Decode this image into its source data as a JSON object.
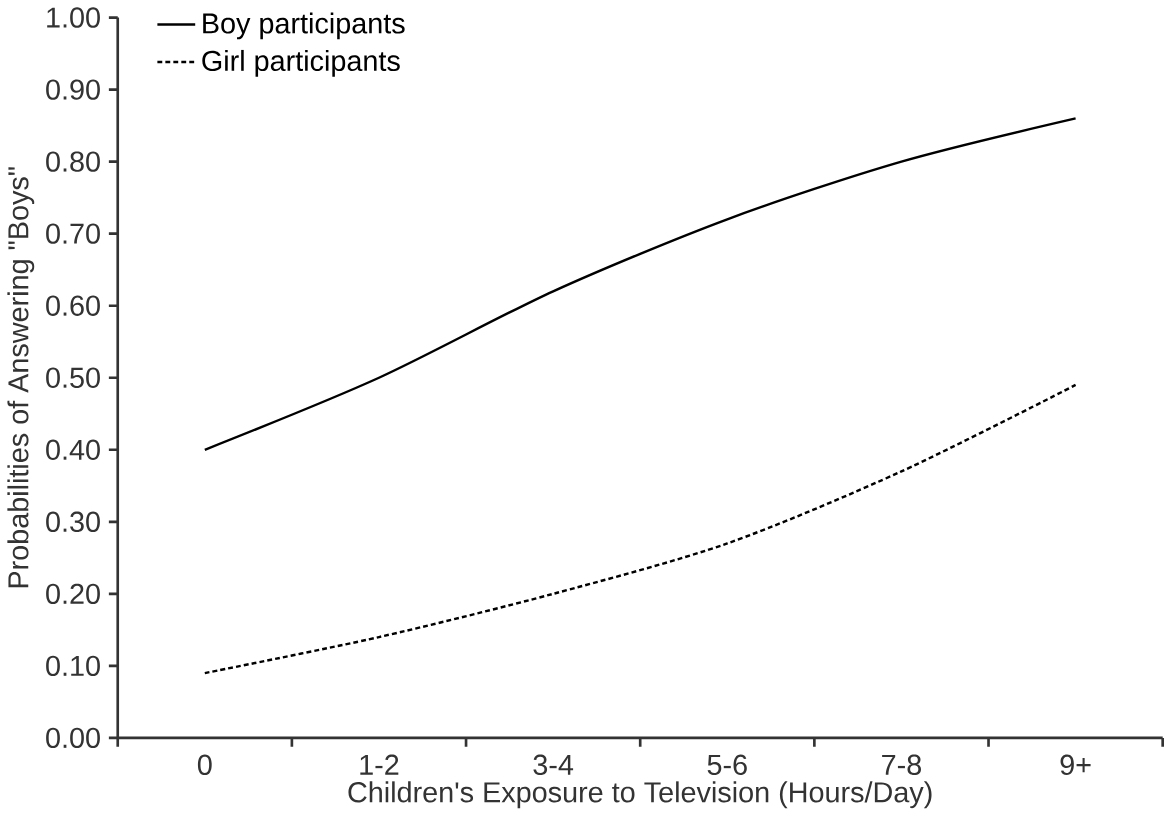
{
  "chart_data": {
    "type": "line",
    "xlabel": "Children's Exposure to Television (Hours/Day)",
    "ylabel": "Probabilities of Answering \"Boys\"",
    "categories": [
      "0",
      "1-2",
      "3-4",
      "5-6",
      "7-8",
      "9+"
    ],
    "series": [
      {
        "name": "Boy participants",
        "color": "#000000",
        "line_style": "solid",
        "values": [
          0.4,
          0.5,
          0.62,
          0.72,
          0.8,
          0.86
        ]
      },
      {
        "name": "Girl participants",
        "color": "#000000",
        "line_style": "dashed",
        "values": [
          0.09,
          0.14,
          0.2,
          0.27,
          0.37,
          0.49
        ]
      }
    ],
    "ylim": [
      0,
      1
    ],
    "yticks": [
      {
        "value": 0,
        "label": "0.00"
      },
      {
        "value": 0.1,
        "label": "0.10"
      },
      {
        "value": 0.2,
        "label": "0.20"
      },
      {
        "value": 0.3,
        "label": "0.30"
      },
      {
        "value": 0.4,
        "label": "0.40"
      },
      {
        "value": 0.5,
        "label": "0.50"
      },
      {
        "value": 0.6,
        "label": "0.60"
      },
      {
        "value": 0.7,
        "label": "0.70"
      },
      {
        "value": 0.8,
        "label": "0.80"
      },
      {
        "value": 0.9,
        "label": "0.90"
      },
      {
        "value": 1,
        "label": "1.00"
      }
    ],
    "grid": false,
    "legend": "top left",
    "marker": "none"
  }
}
